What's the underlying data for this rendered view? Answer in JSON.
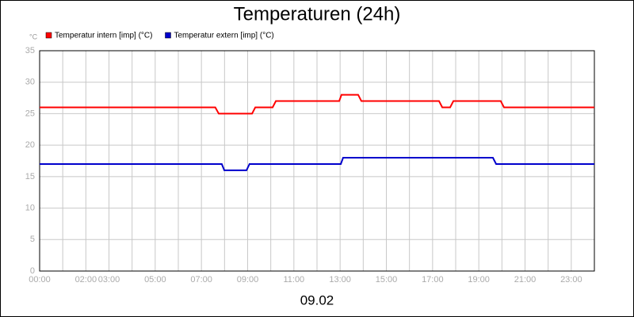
{
  "chart_data": {
    "type": "line",
    "title": "Temperaturen (24h)",
    "y_unit": "°C",
    "xlabel": "09.02",
    "xlim": [
      0,
      24
    ],
    "ylim": [
      0,
      35
    ],
    "yticks": [
      0,
      5,
      10,
      15,
      20,
      25,
      30,
      35
    ],
    "xticks": [
      {
        "value": 0,
        "label": "00:00"
      },
      {
        "value": 2,
        "label": "02:00"
      },
      {
        "value": 3,
        "label": "03:00"
      },
      {
        "value": 5,
        "label": "05:00"
      },
      {
        "value": 7,
        "label": "07:00"
      },
      {
        "value": 9,
        "label": "09:00"
      },
      {
        "value": 11,
        "label": "11:00"
      },
      {
        "value": 13,
        "label": "13:00"
      },
      {
        "value": 15,
        "label": "15:00"
      },
      {
        "value": 17,
        "label": "17:00"
      },
      {
        "value": 19,
        "label": "19:00"
      },
      {
        "value": 21,
        "label": "21:00"
      },
      {
        "value": 23,
        "label": "23:00"
      }
    ],
    "x_minor_grid": [
      1,
      4,
      6,
      8,
      10,
      12,
      14,
      16,
      18,
      20,
      22,
      24
    ],
    "grid": true,
    "legend": "top-left",
    "series": [
      {
        "name": "Temperatur intern [imp] (°C)",
        "color": "#ff0000",
        "x": [
          0,
          7.6,
          7.75,
          9.19,
          9.33,
          10.08,
          10.22,
          12.96,
          13.06,
          13.78,
          13.92,
          17.28,
          17.42,
          17.76,
          17.9,
          19.95,
          20.09,
          24
        ],
        "values": [
          26,
          26,
          25,
          25,
          26,
          26,
          27,
          27,
          28,
          28,
          27,
          27,
          26,
          26,
          27,
          27,
          26,
          26
        ]
      },
      {
        "name": "Temperatur extern [imp] (°C)",
        "color": "#0000cc",
        "x": [
          0,
          7.88,
          7.99,
          8.95,
          9.08,
          13.03,
          13.13,
          19.61,
          19.75,
          24
        ],
        "values": [
          17,
          17,
          16,
          16,
          17,
          17,
          18,
          18,
          17,
          17
        ]
      }
    ]
  }
}
